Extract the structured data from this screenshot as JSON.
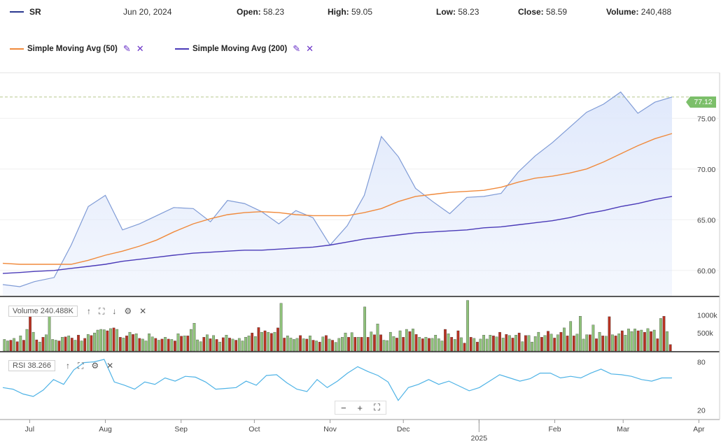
{
  "header": {
    "symbol": "SR",
    "date": "Jun 20, 2024",
    "open_label": "Open:",
    "open": "58.23",
    "high_label": "High:",
    "high": "59.05",
    "low_label": "Low:",
    "low": "58.23",
    "close_label": "Close:",
    "close": "58.59",
    "volume_label": "Volume:",
    "volume": "240,488"
  },
  "legend": {
    "sma50": "Simple Moving Avg (50)",
    "sma200": "Simple Moving Avg (200)"
  },
  "colors": {
    "price_line": "#7f9bd6",
    "price_fill": "#dfe8fb",
    "sma50": "#f08a3c",
    "sma200": "#4a3ab8",
    "vol_up": "#8fc27a",
    "vol_down": "#b83222",
    "rsi": "#4fb3e6",
    "last_price_tag": "#7cbf6a"
  },
  "volume_panel": {
    "label": "Volume 240.488K"
  },
  "rsi_panel": {
    "label": "RSI 38.266"
  },
  "last_price": "77.12",
  "chart_data": [
    {
      "type": "line",
      "x": [
        "2024-06-20",
        "2024-06-27",
        "2024-07-03",
        "2024-07-11",
        "2024-07-18",
        "2024-07-25",
        "2024-08-01",
        "2024-08-08",
        "2024-08-15",
        "2024-08-22",
        "2024-08-29",
        "2024-09-06",
        "2024-09-13",
        "2024-09-20",
        "2024-09-27",
        "2024-10-04",
        "2024-10-11",
        "2024-10-18",
        "2024-10-25",
        "2024-11-01",
        "2024-11-08",
        "2024-11-15",
        "2024-11-22",
        "2024-11-29",
        "2024-12-06",
        "2024-12-13",
        "2024-12-20",
        "2024-12-27",
        "2025-01-03",
        "2025-01-10",
        "2025-01-17",
        "2025-01-24",
        "2025-01-31",
        "2025-02-07",
        "2025-02-14",
        "2025-02-21",
        "2025-02-28",
        "2025-03-07",
        "2025-03-14",
        "2025-03-21"
      ],
      "series": [
        {
          "name": "SR",
          "values": [
            58.6,
            58.4,
            58.9,
            59.3,
            62.5,
            66.3,
            67.4,
            64.0,
            64.6,
            65.4,
            66.2,
            66.1,
            64.8,
            66.9,
            66.6,
            65.8,
            64.6,
            65.9,
            65.2,
            62.5,
            64.4,
            67.4,
            73.2,
            71.2,
            68.1,
            66.8,
            65.6,
            67.2,
            67.3,
            67.6,
            69.7,
            71.3,
            72.6,
            74.1,
            75.6,
            76.4,
            77.6,
            75.5,
            76.6,
            77.1
          ]
        },
        {
          "name": "Simple Moving Avg (50)",
          "values": [
            60.7,
            60.6,
            60.6,
            60.6,
            60.6,
            61.0,
            61.5,
            61.9,
            62.4,
            63.0,
            63.8,
            64.6,
            65.1,
            65.5,
            65.7,
            65.8,
            65.7,
            65.5,
            65.4,
            65.4,
            65.4,
            65.7,
            66.1,
            66.8,
            67.3,
            67.5,
            67.7,
            67.8,
            67.9,
            68.2,
            68.7,
            69.1,
            69.3,
            69.6,
            70.0,
            70.7,
            71.5,
            72.3,
            73.0,
            73.5
          ]
        },
        {
          "name": "Simple Moving Avg (200)",
          "values": [
            59.7,
            59.8,
            59.9,
            60.0,
            60.2,
            60.4,
            60.6,
            60.9,
            61.1,
            61.3,
            61.5,
            61.7,
            61.8,
            61.9,
            62.0,
            62.0,
            62.1,
            62.2,
            62.3,
            62.5,
            62.8,
            63.1,
            63.3,
            63.5,
            63.7,
            63.8,
            63.9,
            64.0,
            64.2,
            64.3,
            64.5,
            64.7,
            64.9,
            65.2,
            65.6,
            65.9,
            66.3,
            66.6,
            67.0,
            67.3
          ]
        }
      ],
      "yticks": [
        "60.00",
        "65.00",
        "70.00",
        "75.00"
      ],
      "ylim": [
        57.5,
        79.5
      ],
      "xticks": [
        "Jul",
        "Aug",
        "Sep",
        "Oct",
        "Nov",
        "Dec",
        "2025",
        "Feb",
        "Mar",
        "Apr"
      ],
      "xtick_sublabel": "2025"
    },
    {
      "type": "bar",
      "series": [
        {
          "name": "Volume",
          "values": [
            320,
            280,
            300,
            350,
            260,
            420,
            300,
            600,
            1050,
            520,
            310,
            250,
            380,
            450,
            1100,
            320,
            300,
            280,
            380,
            390,
            420,
            360,
            300,
            440,
            280,
            350,
            460,
            430,
            500,
            580,
            600,
            590,
            560,
            620,
            640,
            600,
            380,
            360,
            420,
            520,
            460,
            480,
            350,
            330,
            280,
            480,
            390,
            350,
            300,
            330,
            380,
            330,
            320,
            280,
            480,
            410,
            420,
            420,
            600,
            770,
            310,
            260,
            380,
            450,
            340,
            430,
            320,
            250,
            370,
            440,
            360,
            330,
            300,
            350,
            280,
            380,
            420,
            500,
            400,
            650,
            520,
            560,
            520,
            490,
            520,
            640,
            1320,
            360,
            420,
            360,
            320,
            350,
            430,
            340,
            330,
            420,
            300,
            280,
            250,
            390,
            430,
            330,
            300,
            240,
            350,
            380,
            500,
            380,
            510,
            380,
            380,
            380,
            1220,
            380,
            530,
            450,
            750,
            450,
            300,
            290,
            520,
            400,
            360,
            560,
            380,
            600,
            540,
            610,
            460,
            380,
            340,
            380,
            350,
            350,
            440,
            340,
            280,
            600,
            480,
            380,
            320,
            560,
            370,
            220,
            1400,
            380,
            350,
            250,
            330,
            440,
            330,
            440,
            420,
            390,
            520,
            360,
            460,
            430,
            360,
            440,
            500,
            260,
            430,
            430,
            250,
            400,
            520,
            380,
            430,
            550,
            470,
            360,
            450,
            520,
            640,
            420,
            820,
            420,
            470,
            960,
            330,
            450,
            450,
            720,
            340,
            520,
            420,
            410,
            950,
            450,
            420,
            480,
            560,
            440,
            610,
            540,
            610,
            560,
            580,
            520,
            620,
            540,
            580,
            340,
            900,
            960,
            540,
            180
          ]
        }
      ],
      "yticks": [
        "500k",
        "1000k"
      ],
      "ylim": [
        0,
        1450
      ]
    },
    {
      "type": "line",
      "series": [
        {
          "name": "RSI",
          "values": [
            48,
            46,
            40,
            37,
            45,
            58,
            52,
            70,
            79,
            80,
            83,
            55,
            51,
            46,
            55,
            52,
            60,
            56,
            62,
            61,
            55,
            46,
            47,
            48,
            56,
            51,
            63,
            64,
            54,
            46,
            43,
            58,
            48,
            56,
            66,
            74,
            68,
            63,
            55,
            32,
            48,
            52,
            58,
            52,
            56,
            50,
            44,
            48,
            56,
            64,
            60,
            56,
            59,
            66,
            66,
            60,
            62,
            60,
            66,
            71,
            65,
            64,
            62,
            58,
            56,
            60,
            60
          ]
        }
      ],
      "yticks": [
        "20",
        "80"
      ],
      "ylim": [
        10,
        90
      ]
    }
  ]
}
